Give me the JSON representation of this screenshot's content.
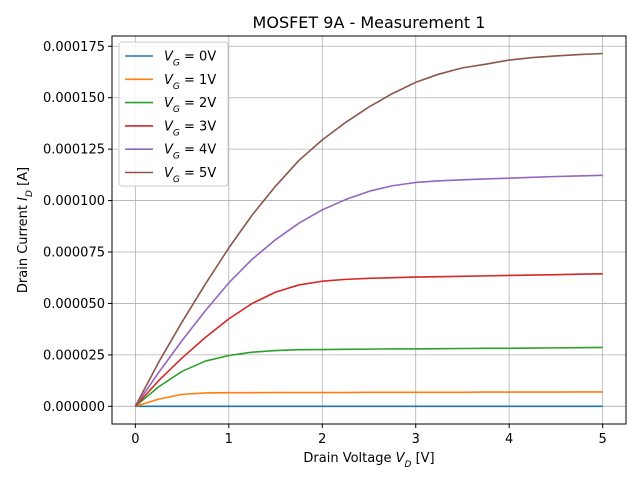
{
  "chart_data": {
    "type": "line",
    "title": "MOSFET 9A - Measurement 1",
    "xlabel": "Drain Voltage V_D [V]",
    "ylabel": "Drain Current I_D [A]",
    "xlim": [
      -0.25,
      5.25
    ],
    "ylim": [
      -8.6e-06,
      0.00018
    ],
    "x_ticks": [
      0,
      1,
      2,
      3,
      4,
      5
    ],
    "x_tick_labels": [
      "0",
      "1",
      "2",
      "3",
      "4",
      "5"
    ],
    "y_ticks": [
      0,
      2.5e-05,
      5e-05,
      7.5e-05,
      0.0001,
      0.000125,
      0.00015,
      0.000175
    ],
    "y_tick_labels": [
      "0.000000",
      "0.000025",
      "0.000050",
      "0.000075",
      "0.000100",
      "0.000125",
      "0.000150",
      "0.000175"
    ],
    "grid": true,
    "legend_position": "top-left",
    "x": [
      0,
      0.25,
      0.5,
      0.75,
      1,
      1.25,
      1.5,
      1.75,
      2,
      2.25,
      2.5,
      2.75,
      3,
      3.25,
      3.5,
      3.75,
      4,
      4.25,
      4.5,
      4.75,
      5
    ],
    "series": [
      {
        "name": "V_G = 0V",
        "color": "#1f77b4",
        "values": [
          0,
          0,
          0,
          0,
          0,
          0,
          0,
          0,
          0,
          0,
          0,
          0,
          0,
          0,
          0,
          0,
          0,
          0,
          0,
          0,
          0
        ]
      },
      {
        "name": "V_G = 1V",
        "color": "#ff7f0e",
        "values": [
          0,
          3.5e-06,
          5.8e-06,
          6.5e-06,
          6.6e-06,
          6.6e-06,
          6.7e-06,
          6.7e-06,
          6.7e-06,
          6.7e-06,
          6.8e-06,
          6.8e-06,
          6.8e-06,
          6.8e-06,
          6.8e-06,
          6.9e-06,
          6.9e-06,
          6.9e-06,
          6.9e-06,
          7e-06,
          7e-06
        ]
      },
      {
        "name": "V_G = 2V",
        "color": "#2ca02c",
        "values": [
          0,
          9.5e-06,
          1.7e-05,
          2.2e-05,
          2.47e-05,
          2.63e-05,
          2.71e-05,
          2.75e-05,
          2.76e-05,
          2.77e-05,
          2.78e-05,
          2.79e-05,
          2.79e-05,
          2.8e-05,
          2.81e-05,
          2.82e-05,
          2.82e-05,
          2.83e-05,
          2.84e-05,
          2.85e-05,
          2.86e-05
        ]
      },
      {
        "name": "V_G = 3V",
        "color": "#d62728",
        "values": [
          0,
          1.25e-05,
          2.35e-05,
          3.35e-05,
          4.25e-05,
          5e-05,
          5.55e-05,
          5.9e-05,
          6.08e-05,
          6.17e-05,
          6.22e-05,
          6.25e-05,
          6.28e-05,
          6.3e-05,
          6.32e-05,
          6.34e-05,
          6.36e-05,
          6.38e-05,
          6.4e-05,
          6.42e-05,
          6.44e-05
        ]
      },
      {
        "name": "V_G = 4V",
        "color": "#9467bd",
        "values": [
          0,
          1.65e-05,
          3.2e-05,
          4.65e-05,
          6e-05,
          7.15e-05,
          8.1e-05,
          8.9e-05,
          9.55e-05,
          0.0001005,
          0.0001045,
          0.0001072,
          0.0001088,
          0.0001096,
          0.0001101,
          0.0001105,
          0.0001109,
          0.0001113,
          0.0001117,
          0.000112,
          0.0001123
        ]
      },
      {
        "name": "V_G = 5V",
        "color": "#8c564b",
        "values": [
          0,
          2.15e-05,
          4.1e-05,
          5.95e-05,
          7.7e-05,
          9.3e-05,
          0.000107,
          0.0001195,
          0.0001295,
          0.000138,
          0.0001455,
          0.000152,
          0.0001575,
          0.0001615,
          0.0001645,
          0.0001663,
          0.0001683,
          0.0001695,
          0.0001703,
          0.000171,
          0.0001715
        ]
      }
    ]
  }
}
